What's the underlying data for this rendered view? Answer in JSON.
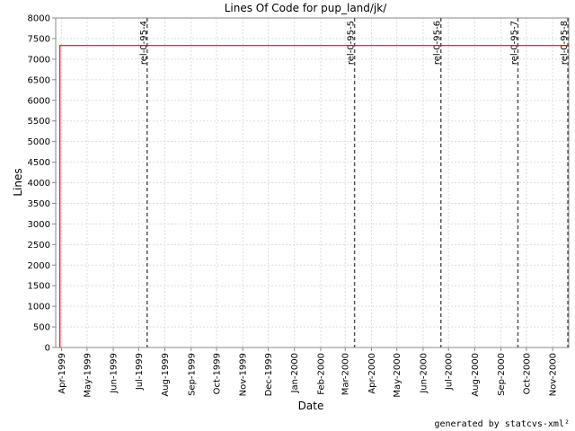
{
  "chart_data": {
    "type": "line",
    "title": "Lines Of Code for pup_land/jk/",
    "xlabel": "Date",
    "ylabel": "Lines",
    "ylim": [
      0,
      8000
    ],
    "yticks": [
      0,
      500,
      1000,
      1500,
      2000,
      2500,
      3000,
      3500,
      4000,
      4500,
      5000,
      5500,
      6000,
      6500,
      7000,
      7500,
      8000
    ],
    "xlim": [
      "1999-03-25",
      "2000-11-20"
    ],
    "xticks": [
      {
        "date": "1999-04-01",
        "label": "Apr-1999"
      },
      {
        "date": "1999-05-01",
        "label": "May-1999"
      },
      {
        "date": "1999-06-01",
        "label": "Jun-1999"
      },
      {
        "date": "1999-07-01",
        "label": "Jul-1999"
      },
      {
        "date": "1999-08-01",
        "label": "Aug-1999"
      },
      {
        "date": "1999-09-01",
        "label": "Sep-1999"
      },
      {
        "date": "1999-10-01",
        "label": "Oct-1999"
      },
      {
        "date": "1999-11-01",
        "label": "Nov-1999"
      },
      {
        "date": "1999-12-01",
        "label": "Dec-1999"
      },
      {
        "date": "2000-01-01",
        "label": "Jan-2000"
      },
      {
        "date": "2000-02-01",
        "label": "Feb-2000"
      },
      {
        "date": "2000-03-01",
        "label": "Mar-2000"
      },
      {
        "date": "2000-04-01",
        "label": "Apr-2000"
      },
      {
        "date": "2000-05-01",
        "label": "May-2000"
      },
      {
        "date": "2000-06-01",
        "label": "Jun-2000"
      },
      {
        "date": "2000-07-01",
        "label": "Jul-2000"
      },
      {
        "date": "2000-08-01",
        "label": "Aug-2000"
      },
      {
        "date": "2000-09-01",
        "label": "Sep-2000"
      },
      {
        "date": "2000-10-01",
        "label": "Oct-2000"
      },
      {
        "date": "2000-11-01",
        "label": "Nov-2000"
      }
    ],
    "grid": true,
    "series": [
      {
        "color": "#ff0000",
        "points": [
          {
            "x": "1999-03-30",
            "y": 0
          },
          {
            "x": "1999-03-30",
            "y": 7330
          },
          {
            "x": "2000-11-20",
            "y": 7330
          }
        ]
      }
    ],
    "markers": [
      {
        "date": "1999-07-11",
        "label": "rel-0-95-4"
      },
      {
        "date": "2000-03-12",
        "label": "rel-0-95-5"
      },
      {
        "date": "2000-06-22",
        "label": "rel-0-95-6"
      },
      {
        "date": "2000-09-21",
        "label": "rel-0-95-7"
      },
      {
        "date": "2000-11-19",
        "label": "rel-0-95-8"
      }
    ],
    "colors": {
      "series": "#ff0000",
      "grid": "#dddddd",
      "marker": "#555555"
    }
  },
  "footer": "generated by statcvs-xml²"
}
